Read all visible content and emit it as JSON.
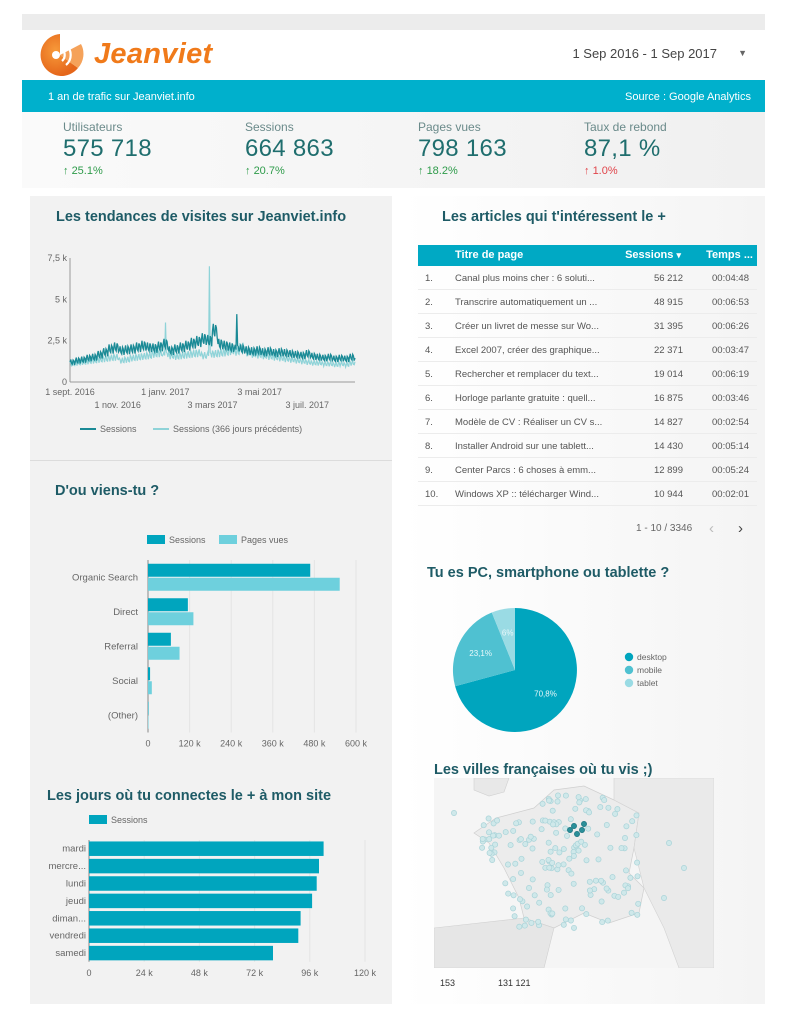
{
  "header": {
    "logo_text": "Jeanviet",
    "date_range": "1 Sep 2016 - 1 Sep 2017",
    "banner_left": "1 an de trafic sur Jeanviet.info",
    "banner_right": "Source : Google Analytics"
  },
  "colors": {
    "brand_orange": "#f07a1a",
    "banner_teal": "#00b0cc",
    "series_dark": "#00a5be",
    "series_light": "#6ed0dd",
    "line_dark": "#1a8a96",
    "line_light": "#8fd3d8",
    "delta_up": "#2e9b4a",
    "delta_down": "#e0444a"
  },
  "kpis": [
    {
      "label": "Utilisateurs",
      "value": "575 718",
      "delta": "25.1%",
      "direction": "up",
      "good": true
    },
    {
      "label": "Sessions",
      "value": "664 863",
      "delta": "20.7%",
      "direction": "up",
      "good": true
    },
    {
      "label": "Pages vues",
      "value": "798 163",
      "delta": "18.2%",
      "direction": "up",
      "good": true
    },
    {
      "label": "Taux de rebond",
      "value": "87,1 %",
      "delta": "1.0%",
      "direction": "up",
      "good": false
    }
  ],
  "sections": {
    "trend_title": "Les tendances de visites sur Jeanviet.info",
    "sources_title": "D'ou viens-tu ?",
    "days_title": "Les jours où tu connectes le + à mon site",
    "articles_title": "Les articles qui t'intéressent le +",
    "devices_title": "Tu es PC, smartphone ou tablette ?",
    "cities_title": "Les villes françaises où tu vis ;)"
  },
  "table": {
    "headers": {
      "title": "Titre de page",
      "sessions": "Sessions",
      "sort_icon": "▾",
      "time": "Temps ..."
    },
    "rows": [
      {
        "num": "1.",
        "title": "Canal plus moins cher : 6 soluti...",
        "sessions": "56 212",
        "time": "00:04:48"
      },
      {
        "num": "2.",
        "title": "Transcrire automatiquement un ...",
        "sessions": "48 915",
        "time": "00:06:53"
      },
      {
        "num": "3.",
        "title": "Créer un livret de messe sur Wo...",
        "sessions": "31 395",
        "time": "00:06:26"
      },
      {
        "num": "4.",
        "title": "Excel 2007, créer des graphique...",
        "sessions": "22 371",
        "time": "00:03:47"
      },
      {
        "num": "5.",
        "title": "Rechercher et remplacer du text...",
        "sessions": "19 014",
        "time": "00:06:19"
      },
      {
        "num": "6.",
        "title": "Horloge parlante gratuite : quell...",
        "sessions": "16 875",
        "time": "00:03:46"
      },
      {
        "num": "7.",
        "title": "Modèle de CV : Réaliser un CV s...",
        "sessions": "14 827",
        "time": "00:02:54"
      },
      {
        "num": "8.",
        "title": "Installer Android sur une tablett...",
        "sessions": "14 430",
        "time": "00:05:14"
      },
      {
        "num": "9.",
        "title": "Center Parcs : 6 choses à emm...",
        "sessions": "12 899",
        "time": "00:05:24"
      },
      {
        "num": "10.",
        "title": "Windows XP :: télécharger Wind...",
        "sessions": "10 944",
        "time": "00:02:01"
      }
    ],
    "pager": "1 - 10 / 3346",
    "prev_icon": "‹",
    "next_icon": "›"
  },
  "map": {
    "legend_min": "153",
    "legend_max": "131 121"
  },
  "chart_data": [
    {
      "type": "line",
      "title": "Les tendances de visites sur Jeanviet.info",
      "xlabel": "",
      "ylabel": "",
      "ylim": [
        0,
        7500
      ],
      "yticks": [
        {
          "v": 0,
          "label": "0"
        },
        {
          "v": 2500,
          "label": "2,5 k"
        },
        {
          "v": 5000,
          "label": "5 k"
        },
        {
          "v": 7500,
          "label": "7,5 k"
        }
      ],
      "xticks_row1": [
        {
          "week": 0,
          "label": "1 sept. 2016"
        },
        {
          "week": 17.4,
          "label": "1 janv. 2017"
        },
        {
          "week": 34.6,
          "label": "3 mai 2017"
        }
      ],
      "xticks_row2": [
        {
          "week": 8.7,
          "label": "1 nov. 2016"
        },
        {
          "week": 26,
          "label": "3 mars 2017"
        },
        {
          "week": 43.3,
          "label": "3 juil. 2017"
        }
      ],
      "x_unit": "week index (0 = 1 sept. 2016, 52 = 1 sept. 2017)",
      "legend": "bottom",
      "grid": false,
      "series": [
        {
          "name": "Sessions",
          "values": [
            1200,
            1300,
            1350,
            1450,
            1500,
            1650,
            1800,
            2000,
            2100,
            1900,
            1950,
            2000,
            2100,
            2200,
            2100,
            2050,
            2150,
            2300,
            1900,
            2000,
            2100,
            2200,
            2350,
            2450,
            2600,
            2500,
            3100,
            2300,
            2200,
            2100,
            4100,
            2000,
            1900,
            1850,
            1900,
            1800,
            1850,
            1750,
            1800,
            1750,
            1700,
            1650,
            1600,
            1700,
            1550,
            1500,
            1450,
            1500,
            1400,
            1450,
            1400,
            1500,
            1450
          ]
        },
        {
          "name": "Sessions (366 jours précédents)",
          "values": [
            1100,
            1150,
            1200,
            1250,
            1300,
            1350,
            1400,
            1450,
            1500,
            1300,
            1350,
            1450,
            1500,
            1550,
            1600,
            1700,
            1750,
            3600,
            1600,
            1550,
            1600,
            1650,
            1700,
            1750,
            1600,
            7000,
            1700,
            1750,
            1800,
            1900,
            1850,
            2100,
            1800,
            1700,
            1650,
            1600,
            1550,
            1500,
            1450,
            1400,
            1350,
            1300,
            1250,
            1200,
            1150,
            1150,
            1100,
            1100,
            1050,
            1100,
            1050,
            1150,
            1100
          ]
        }
      ]
    },
    {
      "type": "bar",
      "orientation": "horizontal",
      "title": "D'ou viens-tu ?",
      "categories": [
        "Organic Search",
        "Direct",
        "Referral",
        "Social",
        "(Other)"
      ],
      "xlim": [
        0,
        600000
      ],
      "xticks": [
        {
          "v": 0,
          "label": "0"
        },
        {
          "v": 120000,
          "label": "120 k"
        },
        {
          "v": 240000,
          "label": "240 k"
        },
        {
          "v": 360000,
          "label": "360 k"
        },
        {
          "v": 480000,
          "label": "480 k"
        },
        {
          "v": 600000,
          "label": "600 k"
        }
      ],
      "legend": "top",
      "grid": true,
      "series": [
        {
          "name": "Sessions",
          "values": [
            468000,
            115000,
            66000,
            6000,
            300
          ]
        },
        {
          "name": "Pages vues",
          "values": [
            553000,
            131000,
            91000,
            11000,
            400
          ]
        }
      ]
    },
    {
      "type": "bar",
      "orientation": "horizontal",
      "title": "Les jours où tu connectes le + à mon site",
      "categories": [
        "mardi",
        "mercre...",
        "lundi",
        "jeudi",
        "diman...",
        "vendredi",
        "samedi"
      ],
      "xlim": [
        0,
        120000
      ],
      "xticks": [
        {
          "v": 0,
          "label": "0"
        },
        {
          "v": 24000,
          "label": "24 k"
        },
        {
          "v": 48000,
          "label": "48 k"
        },
        {
          "v": 72000,
          "label": "72 k"
        },
        {
          "v": 96000,
          "label": "96 k"
        },
        {
          "v": 120000,
          "label": "120 k"
        }
      ],
      "legend": "top",
      "grid": true,
      "series": [
        {
          "name": "Sessions",
          "values": [
            102000,
            100000,
            99000,
            97000,
            92000,
            91000,
            80000
          ]
        }
      ]
    },
    {
      "type": "pie",
      "title": "Tu es PC, smartphone ou tablette ?",
      "legend": "right",
      "slices": [
        {
          "label": "desktop",
          "value": 70.8,
          "display": "70,8%",
          "color": "#00a5be"
        },
        {
          "label": "mobile",
          "value": 23.1,
          "display": "23,1%",
          "color": "#4fc1d1"
        },
        {
          "label": "tablet",
          "value": 6.1,
          "display": "6%",
          "color": "#9adbe4"
        }
      ]
    }
  ]
}
